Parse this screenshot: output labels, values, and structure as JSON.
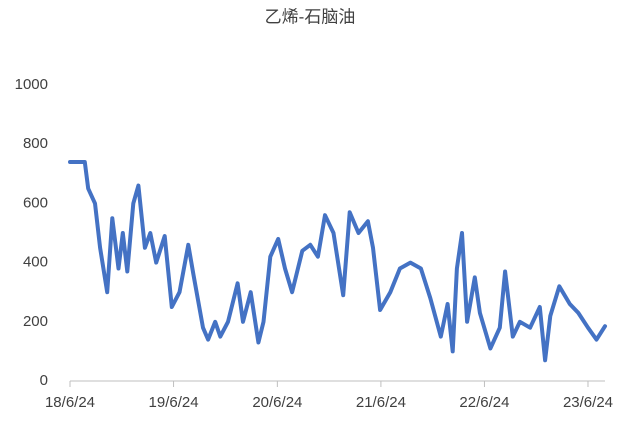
{
  "chart_data": {
    "type": "line",
    "title": "乙烯-石脑油",
    "x": [
      "2018-06-24",
      "2018-08-15",
      "2018-08-27",
      "2018-09-20",
      "2018-10-08",
      "2018-11-02",
      "2018-11-20",
      "2018-12-12",
      "2018-12-27",
      "2019-01-12",
      "2019-02-02",
      "2019-02-20",
      "2019-03-15",
      "2019-04-03",
      "2019-04-24",
      "2019-05-24",
      "2019-06-18",
      "2019-07-15",
      "2019-08-15",
      "2019-09-02",
      "2019-10-06",
      "2019-10-24",
      "2019-11-18",
      "2019-12-06",
      "2020-01-02",
      "2020-02-05",
      "2020-02-24",
      "2020-03-22",
      "2020-04-18",
      "2020-05-06",
      "2020-05-30",
      "2020-06-27",
      "2020-07-21",
      "2020-08-15",
      "2020-09-20",
      "2020-10-18",
      "2020-11-14",
      "2020-12-09",
      "2021-01-08",
      "2021-02-11",
      "2021-03-06",
      "2021-04-06",
      "2021-05-09",
      "2021-05-27",
      "2021-06-21",
      "2021-07-27",
      "2021-08-30",
      "2021-10-06",
      "2021-11-12",
      "2021-12-15",
      "2022-01-21",
      "2022-02-14",
      "2022-03-04",
      "2022-03-19",
      "2022-04-06",
      "2022-04-24",
      "2022-05-21",
      "2022-06-08",
      "2022-07-15",
      "2022-08-17",
      "2022-09-05",
      "2022-10-02",
      "2022-10-27",
      "2022-12-02",
      "2023-01-05",
      "2023-01-24",
      "2023-02-11",
      "2023-03-15",
      "2023-04-21",
      "2023-05-21",
      "2023-06-24",
      "2023-07-24",
      "2023-08-23"
    ],
    "values": [
      740,
      740,
      650,
      600,
      450,
      300,
      550,
      380,
      500,
      370,
      600,
      660,
      450,
      500,
      400,
      490,
      250,
      300,
      460,
      360,
      180,
      140,
      200,
      150,
      200,
      330,
      200,
      300,
      130,
      200,
      420,
      480,
      380,
      300,
      440,
      460,
      420,
      560,
      500,
      290,
      570,
      500,
      540,
      450,
      240,
      300,
      380,
      400,
      380,
      280,
      150,
      260,
      100,
      380,
      500,
      200,
      350,
      230,
      110,
      180,
      370,
      150,
      200,
      180,
      250,
      70,
      220,
      320,
      260,
      230,
      180,
      140,
      185
    ],
    "color": "#4472c4",
    "xlim": [
      "2018-06-24",
      "2023-08-23"
    ],
    "xticks": [
      {
        "value": "2018-06-24",
        "label": "18/6/24"
      },
      {
        "value": "2019-06-24",
        "label": "19/6/24"
      },
      {
        "value": "2020-06-24",
        "label": "20/6/24"
      },
      {
        "value": "2021-06-24",
        "label": "21/6/24"
      },
      {
        "value": "2022-06-24",
        "label": "22/6/24"
      },
      {
        "value": "2023-06-24",
        "label": "23/6/24"
      }
    ],
    "ylim": [
      0,
      1000
    ],
    "yticks": [
      0,
      200,
      400,
      600,
      800,
      1000
    ]
  }
}
